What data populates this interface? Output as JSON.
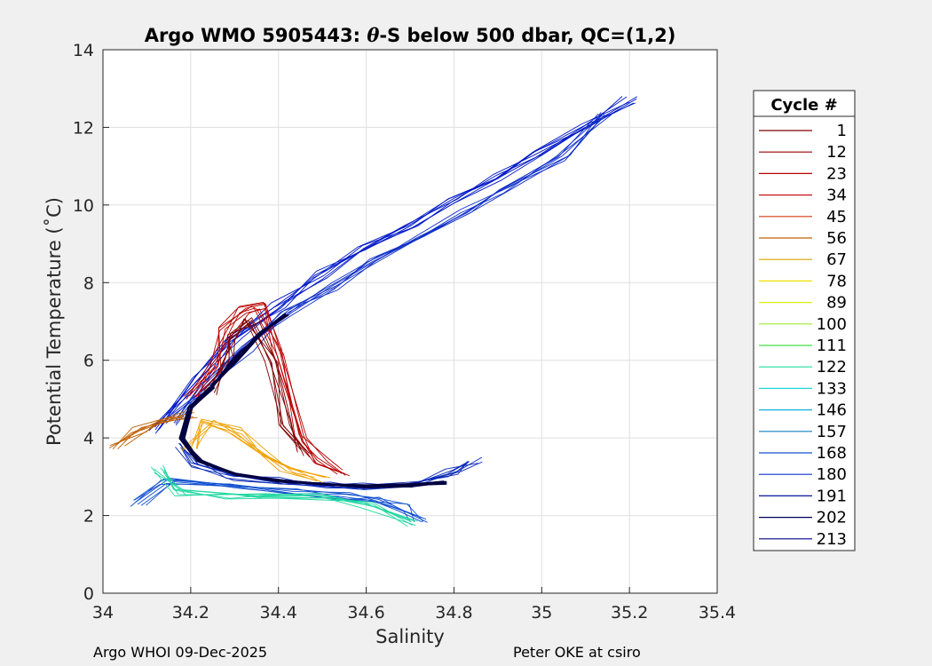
{
  "chart_data": {
    "type": "line",
    "title_prefix": "Argo WMO 5905443: ",
    "title_theta": "θ",
    "title_suffix": "-S below 500 dbar,  QC=(1,2)",
    "xlabel": "Salinity",
    "ylabel": "Potential Temperature (˚C)",
    "xlim": [
      34,
      35.4
    ],
    "ylim": [
      0,
      14
    ],
    "xticks": [
      34,
      34.2,
      34.4,
      34.6,
      34.8,
      35,
      35.2,
      35.4
    ],
    "xtick_labels": [
      "34",
      "34.2",
      "34.4",
      "34.6",
      "34.8",
      "35",
      "35.2",
      "35.4"
    ],
    "yticks": [
      0,
      2,
      4,
      6,
      8,
      10,
      12,
      14
    ],
    "ytick_labels": [
      "0",
      "2",
      "4",
      "6",
      "8",
      "10",
      "12",
      "14"
    ],
    "grid": true,
    "legend": {
      "title": "Cycle #",
      "placement": "right outside",
      "entries": [
        {
          "label": "1",
          "color": "#7f0000"
        },
        {
          "label": "12",
          "color": "#9a0000"
        },
        {
          "label": "23",
          "color": "#b80000"
        },
        {
          "label": "34",
          "color": "#c81414"
        },
        {
          "label": "45",
          "color": "#d43c10"
        },
        {
          "label": "56",
          "color": "#c06000"
        },
        {
          "label": "67",
          "color": "#d8a000"
        },
        {
          "label": "78",
          "color": "#f0e000"
        },
        {
          "label": "89",
          "color": "#d8ee10"
        },
        {
          "label": "100",
          "color": "#a0ee30"
        },
        {
          "label": "111",
          "color": "#40e040"
        },
        {
          "label": "122",
          "color": "#20e0a0"
        },
        {
          "label": "133",
          "color": "#20d8d8"
        },
        {
          "label": "146",
          "color": "#10b0d8"
        },
        {
          "label": "157",
          "color": "#1080c0"
        },
        {
          "label": "168",
          "color": "#1050d0"
        },
        {
          "label": "180",
          "color": "#1030c8"
        },
        {
          "label": "191",
          "color": "#0818a0"
        },
        {
          "label": "202",
          "color": "#000060"
        },
        {
          "label": "213",
          "color": "#00008b"
        }
      ]
    },
    "series_paths": [
      {
        "name": "upper blue branch",
        "color": "#0018c8",
        "x": [
          34.12,
          34.22,
          34.3,
          34.4,
          34.5,
          34.6,
          34.7,
          34.8,
          34.9,
          35.0,
          35.1,
          35.2
        ],
        "y": [
          4.2,
          5.6,
          6.5,
          7.4,
          8.2,
          8.9,
          9.5,
          10.1,
          10.7,
          11.3,
          12.0,
          12.7
        ]
      },
      {
        "name": "upper spread",
        "color": "#1030c8",
        "x": [
          34.15,
          34.24,
          34.33,
          34.42,
          34.52,
          34.62,
          34.72,
          34.82,
          34.92,
          35.05,
          35.14
        ],
        "y": [
          4.4,
          5.4,
          6.3,
          7.2,
          7.9,
          8.6,
          9.2,
          9.8,
          10.4,
          11.2,
          12.3
        ]
      },
      {
        "name": "lower blue branch",
        "color": "#0828b8",
        "x": [
          34.18,
          34.22,
          34.3,
          34.4,
          34.5,
          34.6,
          34.7,
          34.8,
          34.85
        ],
        "y": [
          3.8,
          3.3,
          3.0,
          2.9,
          2.8,
          2.75,
          2.8,
          3.1,
          3.4
        ]
      },
      {
        "name": "lower blue tail",
        "color": "#1050d0",
        "x": [
          34.08,
          34.15,
          34.3,
          34.45,
          34.55,
          34.62,
          34.68,
          34.72
        ],
        "y": [
          2.3,
          2.9,
          2.8,
          2.6,
          2.5,
          2.4,
          2.2,
          1.9
        ]
      },
      {
        "name": "red wedge",
        "color": "#b80000",
        "x": [
          34.2,
          34.25,
          34.28,
          34.32,
          34.36,
          34.4,
          34.45,
          34.5,
          34.55
        ],
        "y": [
          5.0,
          5.8,
          6.8,
          7.3,
          7.4,
          6.2,
          4.0,
          3.4,
          3.1
        ]
      },
      {
        "name": "dark red inner",
        "color": "#7f0000",
        "x": [
          34.24,
          34.28,
          34.3,
          34.34,
          34.38,
          34.42,
          34.46
        ],
        "y": [
          5.2,
          6.0,
          6.6,
          7.0,
          6.0,
          4.4,
          3.6
        ]
      },
      {
        "name": "yellow orange",
        "color": "#f0a000",
        "x": [
          34.2,
          34.24,
          34.3,
          34.36,
          34.42,
          34.5
        ],
        "y": [
          3.7,
          4.4,
          4.2,
          3.6,
          3.2,
          2.9
        ]
      },
      {
        "name": "cyan green",
        "color": "#20d8a0",
        "x": [
          34.12,
          34.18,
          34.28,
          34.38,
          34.5,
          34.6,
          34.7
        ],
        "y": [
          3.2,
          2.6,
          2.5,
          2.5,
          2.5,
          2.3,
          1.8
        ]
      },
      {
        "name": "orange west",
        "color": "#c06000",
        "x": [
          34.03,
          34.08,
          34.14,
          34.2
        ],
        "y": [
          3.8,
          4.2,
          4.5,
          4.6
        ]
      },
      {
        "name": "mean core",
        "color": "#000040",
        "x": [
          34.25,
          34.2,
          34.18,
          34.22,
          34.3,
          34.4,
          34.5,
          34.6,
          34.7,
          34.78
        ],
        "y": [
          5.3,
          4.8,
          4.0,
          3.4,
          3.05,
          2.9,
          2.8,
          2.75,
          2.78,
          2.85
        ]
      },
      {
        "name": "mean core upper",
        "color": "#000040",
        "x": [
          34.25,
          34.3,
          34.36,
          34.42
        ],
        "y": [
          5.3,
          6.0,
          6.7,
          7.2
        ]
      }
    ]
  },
  "footer": {
    "left": "Argo WHOI 09-Dec-2025",
    "right": "Peter OKE at csiro"
  }
}
